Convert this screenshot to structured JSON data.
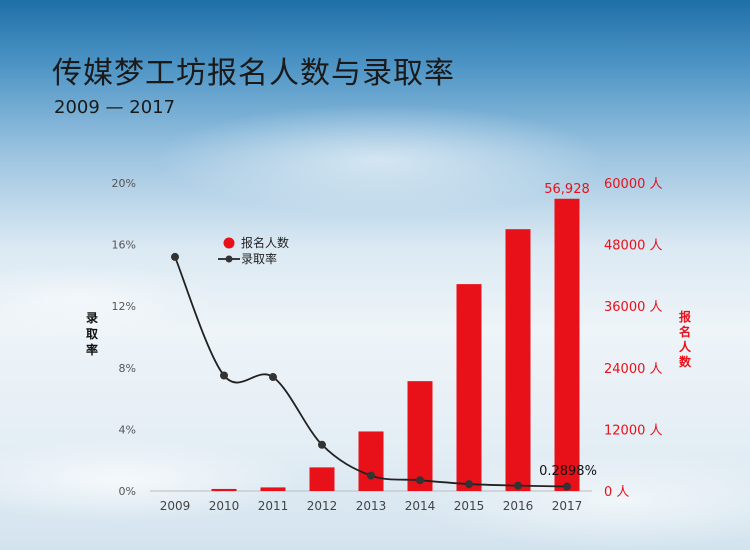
{
  "header": {
    "title": "传媒梦工坊报名人数与录取率",
    "subtitle": "2009 — 2017"
  },
  "chart_data": {
    "type": "bar",
    "categories": [
      "2009",
      "2010",
      "2011",
      "2012",
      "2013",
      "2014",
      "2015",
      "2016",
      "2017"
    ],
    "series": [
      {
        "name": "报名人数",
        "type": "bar",
        "axis": "right",
        "color": "#e8111a",
        "values": [
          0,
          400,
          700,
          4600,
          11600,
          21400,
          40300,
          51000,
          56928
        ]
      },
      {
        "name": "录取率",
        "type": "line",
        "axis": "left",
        "color": "#222222",
        "values": [
          15.2,
          7.5,
          7.4,
          3.0,
          1.0,
          0.7,
          0.45,
          0.35,
          0.2898
        ]
      }
    ],
    "left_axis": {
      "label": "录取率",
      "ticks": [
        "0%",
        "4%",
        "8%",
        "12%",
        "16%",
        "20%"
      ],
      "range": [
        0,
        20
      ]
    },
    "right_axis": {
      "label": "报名人数",
      "ticks": [
        "0 人",
        "12000 人",
        "24000 人",
        "36000 人",
        "48000 人",
        "60000 人"
      ],
      "range": [
        0,
        60000
      ]
    },
    "annotations": {
      "bar_2017": "56,928",
      "line_2017": "0.2898%"
    },
    "legend": {
      "placement": "top-left",
      "entries": [
        "报名人数",
        "录取率"
      ]
    },
    "grid": false
  }
}
